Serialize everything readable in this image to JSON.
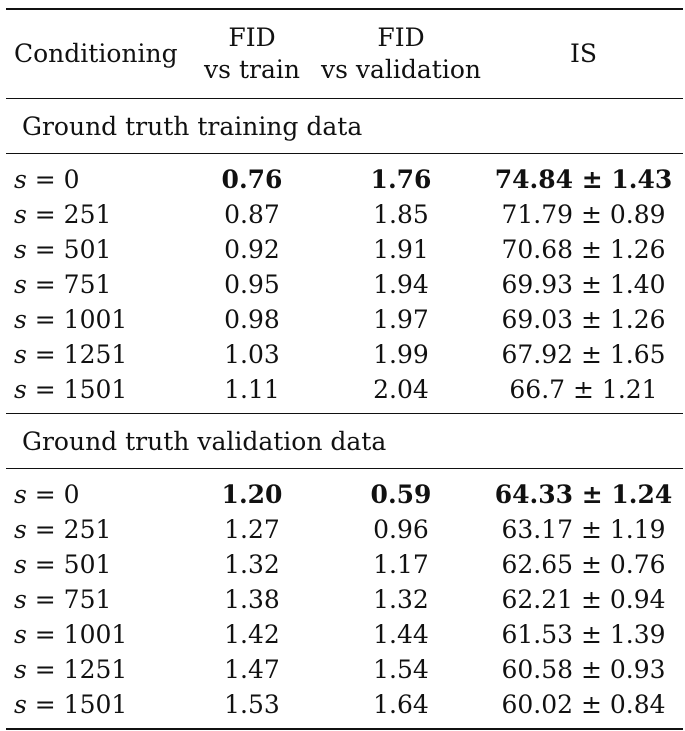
{
  "header": {
    "conditioning": "Conditioning",
    "fid_train_line1": "FID",
    "fid_train_line2": "vs train",
    "fid_val_line1": "FID",
    "fid_val_line2": "vs validation",
    "is": "IS"
  },
  "sections": [
    {
      "title": "Ground truth training data",
      "rows": [
        {
          "var": "s",
          "eq": " = 0",
          "fid_train": "0.76",
          "fid_val": "1.76",
          "is": "74.84 ± 1.43",
          "bold": true
        },
        {
          "var": "s",
          "eq": " = 251",
          "fid_train": "0.87",
          "fid_val": "1.85",
          "is": "71.79 ± 0.89",
          "bold": false
        },
        {
          "var": "s",
          "eq": " = 501",
          "fid_train": "0.92",
          "fid_val": "1.91",
          "is": "70.68 ± 1.26",
          "bold": false
        },
        {
          "var": "s",
          "eq": " = 751",
          "fid_train": "0.95",
          "fid_val": "1.94",
          "is": "69.93 ± 1.40",
          "bold": false
        },
        {
          "var": "s",
          "eq": " = 1001",
          "fid_train": "0.98",
          "fid_val": "1.97",
          "is": "69.03 ± 1.26",
          "bold": false
        },
        {
          "var": "s",
          "eq": " = 1251",
          "fid_train": "1.03",
          "fid_val": "1.99",
          "is": "67.92 ± 1.65",
          "bold": false
        },
        {
          "var": "s",
          "eq": " = 1501",
          "fid_train": "1.11",
          "fid_val": "2.04",
          "is": "66.7 ± 1.21",
          "bold": false
        }
      ]
    },
    {
      "title": "Ground truth validation data",
      "rows": [
        {
          "var": "s",
          "eq": " = 0",
          "fid_train": "1.20",
          "fid_val": "0.59",
          "is": "64.33 ± 1.24",
          "bold": true
        },
        {
          "var": "s",
          "eq": " = 251",
          "fid_train": "1.27",
          "fid_val": "0.96",
          "is": "63.17 ± 1.19",
          "bold": false
        },
        {
          "var": "s",
          "eq": " = 501",
          "fid_train": "1.32",
          "fid_val": "1.17",
          "is": "62.65 ± 0.76",
          "bold": false
        },
        {
          "var": "s",
          "eq": " = 751",
          "fid_train": "1.38",
          "fid_val": "1.32",
          "is": "62.21 ± 0.94",
          "bold": false
        },
        {
          "var": "s",
          "eq": " = 1001",
          "fid_train": "1.42",
          "fid_val": "1.44",
          "is": "61.53 ± 1.39",
          "bold": false
        },
        {
          "var": "s",
          "eq": " = 1251",
          "fid_train": "1.47",
          "fid_val": "1.54",
          "is": "60.58 ± 0.93",
          "bold": false
        },
        {
          "var": "s",
          "eq": " = 1501",
          "fid_train": "1.53",
          "fid_val": "1.64",
          "is": "60.02 ± 0.84",
          "bold": false
        }
      ]
    }
  ]
}
